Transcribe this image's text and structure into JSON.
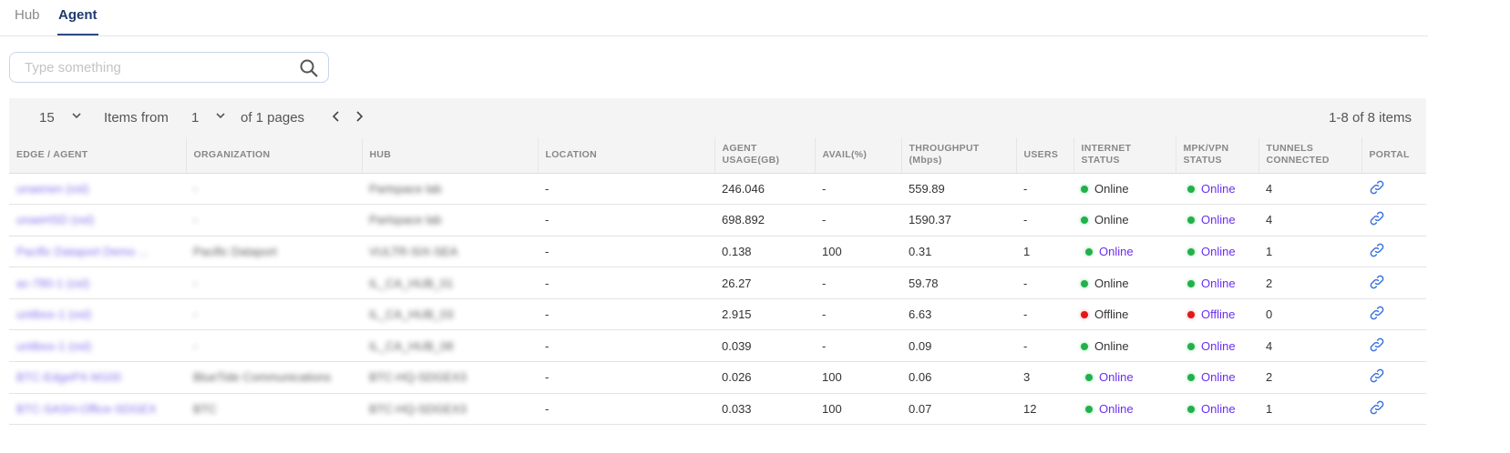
{
  "tabs": [
    {
      "label": "Hub",
      "active": false
    },
    {
      "label": "Agent",
      "active": true
    }
  ],
  "search": {
    "placeholder": "Type something",
    "icon": "search-icon"
  },
  "pager": {
    "page_size": "15",
    "items_from_label": "Items from",
    "page": "1",
    "of_pages": "of 1 pages",
    "summary": "1-8 of 8 items"
  },
  "colors": {
    "online": "#22b04b",
    "offline": "#e01818",
    "link": "#6a2ef0",
    "tab_active": "#1f3a6e"
  },
  "columns": [
    "EDGE / AGENT",
    "ORGANIZATION",
    "HUB",
    "LOCATION",
    "AGENT USAGE(GB)",
    "AVAIL(%)",
    "THROUGHPUT (Mbps)",
    "USERS",
    "INTERNET STATUS",
    "MPK/VPN STATUS",
    "TUNNELS CONNECTED",
    "PORTAL"
  ],
  "rows": [
    {
      "agent": "unaenen (osl)",
      "org": "-",
      "hub": "Partspace lab",
      "location": "-",
      "usage": "246.046",
      "avail": "-",
      "throughput": "559.89",
      "users": "-",
      "internet": "Online",
      "internet_link": false,
      "vpn": "Online",
      "tunnels": "4"
    },
    {
      "agent": "unaeHSD (osl)",
      "org": "-",
      "hub": "Partspace lab",
      "location": "-",
      "usage": "698.892",
      "avail": "-",
      "throughput": "1590.37",
      "users": "-",
      "internet": "Online",
      "internet_link": false,
      "vpn": "Online",
      "tunnels": "4"
    },
    {
      "agent": "Pacific Dataport Demo ...",
      "org": "Pacific Dataport",
      "hub": "VULTR-SIX-SEA",
      "location": "-",
      "usage": "0.138",
      "avail": "100",
      "throughput": "0.31",
      "users": "1",
      "internet": "Online",
      "internet_link": true,
      "vpn": "Online",
      "tunnels": "1"
    },
    {
      "agent": "ac-780-1 (osl)",
      "org": "-",
      "hub": "IL_CA_HUB_01",
      "location": "-",
      "usage": "26.27",
      "avail": "-",
      "throughput": "59.78",
      "users": "-",
      "internet": "Online",
      "internet_link": false,
      "vpn": "Online",
      "tunnels": "2"
    },
    {
      "agent": "unitbox-1 (osl)",
      "org": "-",
      "hub": "IL_CA_HUB_03",
      "location": "-",
      "usage": "2.915",
      "avail": "-",
      "throughput": "6.63",
      "users": "-",
      "internet": "Offline",
      "internet_link": false,
      "vpn": "Offline",
      "tunnels": "0"
    },
    {
      "agent": "unitbox-1 (osl)",
      "org": "-",
      "hub": "IL_CA_HUB_08",
      "location": "-",
      "usage": "0.039",
      "avail": "-",
      "throughput": "0.09",
      "users": "-",
      "internet": "Online",
      "internet_link": false,
      "vpn": "Online",
      "tunnels": "4"
    },
    {
      "agent": "BTC-EdgePX-M100",
      "org": "BlueTide Communications",
      "hub": "BTC-HQ-SDGEX3",
      "location": "-",
      "usage": "0.026",
      "avail": "100",
      "throughput": "0.06",
      "users": "3",
      "internet": "Online",
      "internet_link": true,
      "vpn": "Online",
      "tunnels": "2"
    },
    {
      "agent": "BTC-SASH-Office-SDGEX",
      "org": "BTC",
      "hub": "BTC-HQ-SDGEX3",
      "location": "-",
      "usage": "0.033",
      "avail": "100",
      "throughput": "0.07",
      "users": "12",
      "internet": "Online",
      "internet_link": true,
      "vpn": "Online",
      "tunnels": "1"
    }
  ]
}
